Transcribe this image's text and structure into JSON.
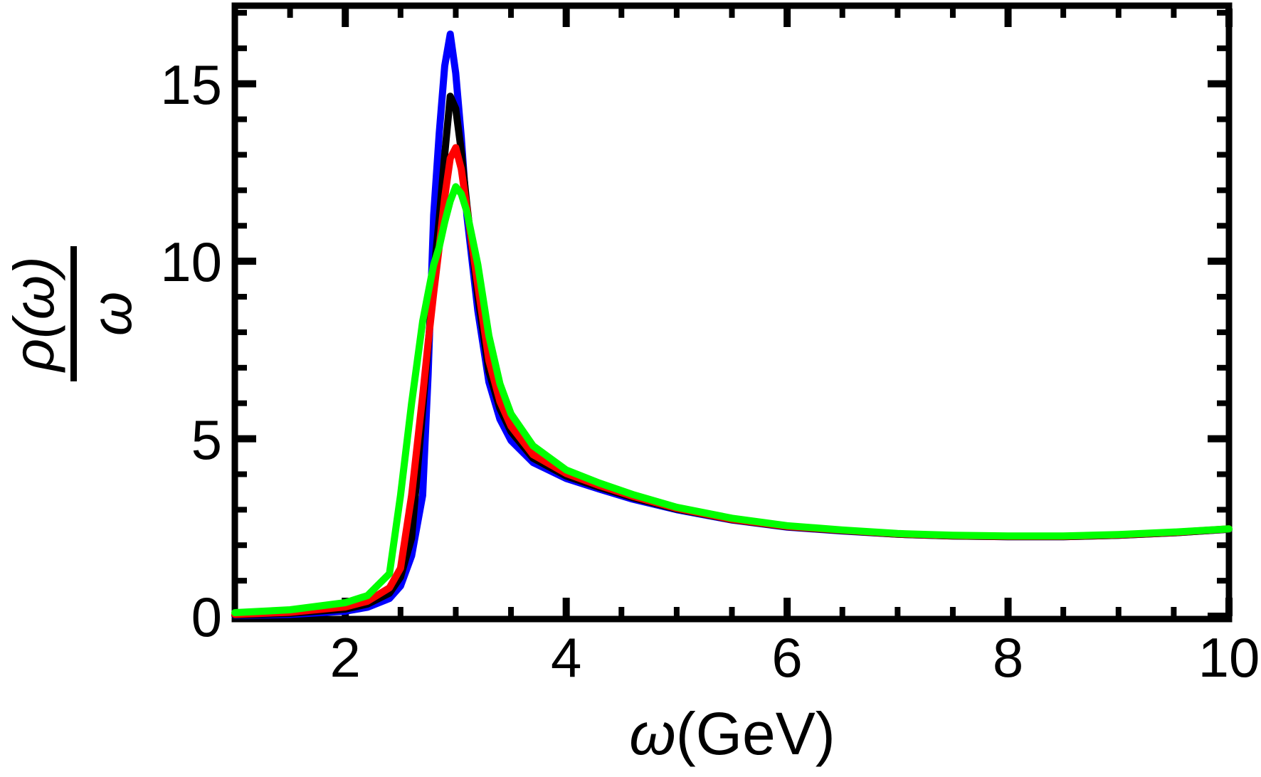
{
  "figure": {
    "background": "#FFFFFF",
    "frame_color": "#000000",
    "tick_color": "#000000",
    "text_color": "#000000"
  },
  "chart_data": {
    "type": "line",
    "title": "",
    "xlabel": "ω(GeV)",
    "xlabel_symbol": "ω",
    "xlabel_unit": "(GeV)",
    "ylabel": "ρ(ω)/ω",
    "ylabel_numerator": "ρ(ω)",
    "ylabel_denominator": "ω",
    "xlim": [
      1,
      10
    ],
    "ylim": [
      0,
      17.2
    ],
    "grid": false,
    "legend": null,
    "xticks_major": [
      2,
      4,
      6,
      8,
      10
    ],
    "xtick_labels": [
      "2",
      "4",
      "6",
      "8",
      "10"
    ],
    "xticks_minor": [
      1.5,
      2.5,
      3,
      3.5,
      4.5,
      5,
      5.5,
      6.5,
      7,
      7.5,
      8.5,
      9,
      9.5
    ],
    "yticks_major": [
      0,
      5,
      10,
      15
    ],
    "ytick_labels": [
      "0",
      "5",
      "10",
      "15"
    ],
    "yticks_minor": [
      1,
      2,
      3,
      4,
      6,
      7,
      8,
      9,
      11,
      12,
      13,
      14,
      16,
      17
    ],
    "x": [
      1.0,
      1.5,
      2.0,
      2.2,
      2.4,
      2.5,
      2.6,
      2.7,
      2.75,
      2.8,
      2.85,
      2.9,
      2.95,
      3.0,
      3.05,
      3.1,
      3.2,
      3.3,
      3.4,
      3.5,
      3.7,
      4.0,
      4.3,
      4.6,
      5.0,
      5.5,
      6.0,
      6.5,
      7.0,
      7.5,
      8.0,
      8.5,
      9.0,
      9.5,
      10.0
    ],
    "series": [
      {
        "name": "blue-curve",
        "color": "#0000FF",
        "peak": {
          "x": 2.95,
          "y": 16.4
        },
        "values": [
          0.02,
          0.05,
          0.14,
          0.25,
          0.5,
          0.85,
          1.7,
          3.4,
          6.8,
          11.3,
          13.6,
          15.5,
          16.4,
          15.3,
          13.5,
          11.3,
          8.6,
          6.6,
          5.55,
          4.95,
          4.33,
          3.88,
          3.58,
          3.3,
          3.0,
          2.71,
          2.51,
          2.4,
          2.31,
          2.26,
          2.24,
          2.24,
          2.28,
          2.35,
          2.45
        ]
      },
      {
        "name": "black-curve",
        "color": "#000000",
        "peak": {
          "x": 2.95,
          "y": 14.65
        },
        "values": [
          0.03,
          0.08,
          0.2,
          0.34,
          0.65,
          1.1,
          2.2,
          5.8,
          7.6,
          9.6,
          11.2,
          13.0,
          14.65,
          14.3,
          13.1,
          11.6,
          9.0,
          6.9,
          5.85,
          5.2,
          4.45,
          3.95,
          3.63,
          3.34,
          3.02,
          2.72,
          2.52,
          2.41,
          2.31,
          2.26,
          2.24,
          2.24,
          2.28,
          2.35,
          2.45
        ]
      },
      {
        "name": "red-curve",
        "color": "#FF0000",
        "peak": {
          "x": 3.0,
          "y": 13.2
        },
        "values": [
          0.05,
          0.11,
          0.26,
          0.42,
          0.8,
          1.35,
          3.4,
          6.2,
          7.7,
          9.1,
          10.4,
          11.8,
          12.9,
          13.2,
          12.6,
          11.5,
          9.3,
          7.2,
          6.05,
          5.35,
          4.55,
          4.02,
          3.68,
          3.38,
          3.04,
          2.73,
          2.53,
          2.42,
          2.32,
          2.27,
          2.25,
          2.25,
          2.29,
          2.36,
          2.46
        ]
      },
      {
        "name": "green-curve",
        "color": "#00FF00",
        "peak": {
          "x": 3.0,
          "y": 12.1
        },
        "values": [
          0.1,
          0.18,
          0.38,
          0.58,
          1.2,
          3.4,
          6.0,
          8.3,
          9.1,
          9.9,
          10.4,
          11.1,
          11.7,
          12.1,
          11.9,
          11.4,
          9.9,
          7.9,
          6.55,
          5.7,
          4.8,
          4.12,
          3.75,
          3.43,
          3.07,
          2.76,
          2.55,
          2.43,
          2.33,
          2.28,
          2.26,
          2.26,
          2.3,
          2.37,
          2.46
        ]
      }
    ]
  }
}
